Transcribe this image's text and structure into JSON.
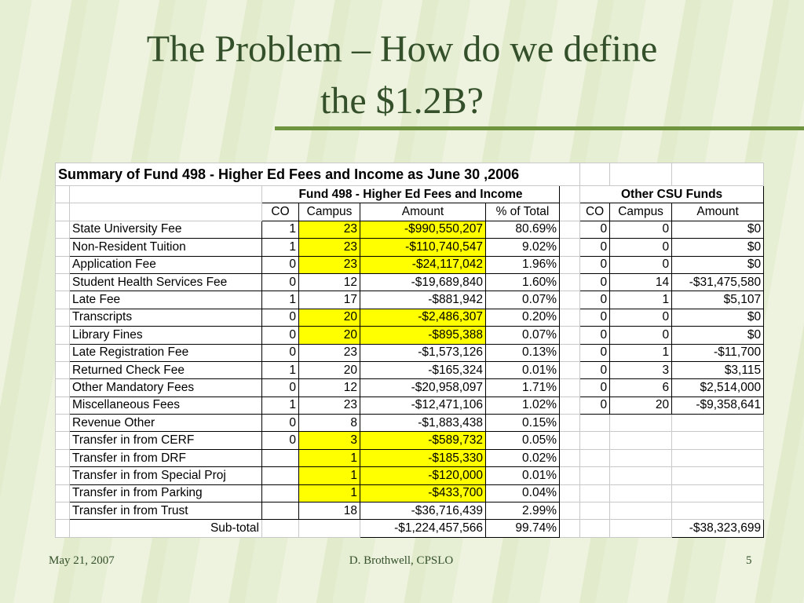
{
  "title": [
    "The Problem – How do we define",
    "the $1.2B?"
  ],
  "table": {
    "caption": "Summary of Fund 498 - Higher Ed Fees and Income as June 30 ,2006",
    "group_headers": [
      "Fund 498 - Higher Ed Fees and Income",
      "Other CSU Funds"
    ],
    "columns": [
      "CO",
      "Campus",
      "Amount",
      "% of Total",
      "CO",
      "Campus",
      "Amount"
    ],
    "rows": [
      {
        "cells": [
          "State University Fee",
          "1",
          "23",
          "-$990,550,207",
          "80.69%",
          "0",
          "0",
          "$0"
        ],
        "highlight": true
      },
      {
        "cells": [
          "Non-Resident Tuition",
          "1",
          "23",
          "-$110,740,547",
          "9.02%",
          "0",
          "0",
          "$0"
        ],
        "highlight": true
      },
      {
        "cells": [
          "Application Fee",
          "0",
          "23",
          "-$24,117,042",
          "1.96%",
          "0",
          "0",
          "$0"
        ],
        "highlight": true
      },
      {
        "cells": [
          "Student Health Services Fee",
          "0",
          "12",
          "-$19,689,840",
          "1.60%",
          "0",
          "14",
          "-$31,475,580"
        ],
        "highlight": false
      },
      {
        "cells": [
          "Late Fee",
          "1",
          "17",
          "-$881,942",
          "0.07%",
          "0",
          "1",
          "$5,107"
        ],
        "highlight": false
      },
      {
        "cells": [
          "Transcripts",
          "0",
          "20",
          "-$2,486,307",
          "0.20%",
          "0",
          "0",
          "$0"
        ],
        "highlight": true
      },
      {
        "cells": [
          "Library Fines",
          "0",
          "20",
          "-$895,388",
          "0.07%",
          "0",
          "0",
          "$0"
        ],
        "highlight": true
      },
      {
        "cells": [
          "Late Registration Fee",
          "0",
          "23",
          "-$1,573,126",
          "0.13%",
          "0",
          "1",
          "-$11,700"
        ],
        "highlight": false
      },
      {
        "cells": [
          "Returned Check Fee",
          "1",
          "20",
          "-$165,324",
          "0.01%",
          "0",
          "3",
          "$3,115"
        ],
        "highlight": false
      },
      {
        "cells": [
          "Other Mandatory Fees",
          "0",
          "12",
          "-$20,958,097",
          "1.71%",
          "0",
          "6",
          "$2,514,000"
        ],
        "highlight": false
      },
      {
        "cells": [
          "Miscellaneous Fees",
          "1",
          "23",
          "-$12,471,106",
          "1.02%",
          "0",
          "20",
          "-$9,358,641"
        ],
        "highlight": false
      },
      {
        "cells": [
          "Revenue Other",
          "0",
          "8",
          "-$1,883,438",
          "0.15%",
          null,
          null,
          null
        ],
        "highlight": false
      },
      {
        "cells": [
          "Transfer in from CERF",
          "0",
          "3",
          "-$589,732",
          "0.05%",
          null,
          null,
          null
        ],
        "highlight": true
      },
      {
        "cells": [
          "Transfer in from DRF",
          null,
          "1",
          "-$185,330",
          "0.02%",
          null,
          null,
          null
        ],
        "highlight": true
      },
      {
        "cells": [
          "Transfer in from Special Proj",
          null,
          "1",
          "-$120,000",
          "0.01%",
          null,
          null,
          null
        ],
        "highlight": true
      },
      {
        "cells": [
          "Transfer in from Parking",
          null,
          "1",
          "-$433,700",
          "0.04%",
          null,
          null,
          null
        ],
        "highlight": true
      },
      {
        "cells": [
          "Transfer in from Trust",
          null,
          "18",
          "-$36,716,439",
          "2.99%",
          null,
          null,
          null
        ],
        "highlight": false
      }
    ],
    "subtotal": {
      "label": "Sub-total",
      "amount": "-$1,224,457,566",
      "pct": "99.74%",
      "other_amount": "-$38,323,699"
    }
  },
  "footer": {
    "date": "May 21, 2007",
    "author": "D. Brothwell, CPSLO",
    "page": "5"
  }
}
